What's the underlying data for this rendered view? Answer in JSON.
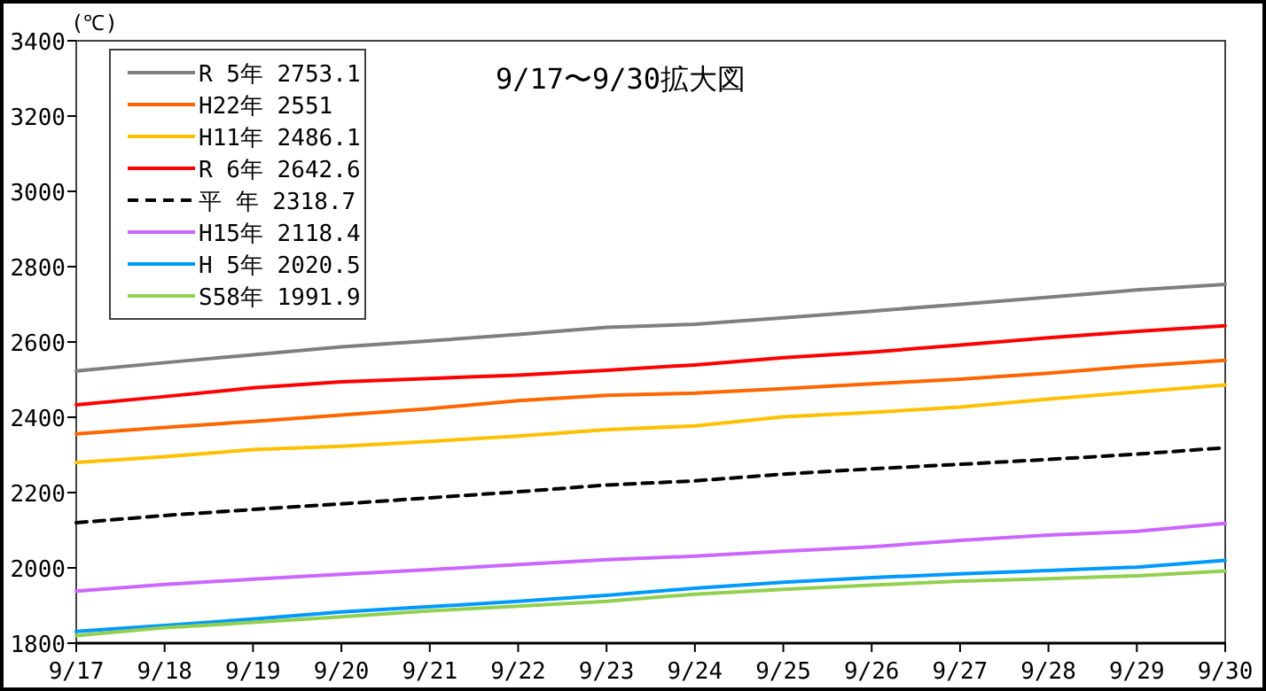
{
  "chart_data": {
    "type": "line",
    "title": "9/17〜9/30拡大図",
    "ylabel": "(℃)",
    "categories": [
      "9/17",
      "9/18",
      "9/19",
      "9/20",
      "9/21",
      "9/22",
      "9/23",
      "9/24",
      "9/25",
      "9/26",
      "9/27",
      "9/28",
      "9/29",
      "9/30"
    ],
    "ylim": [
      1800,
      3400
    ],
    "yticks": [
      1800,
      2000,
      2200,
      2400,
      2600,
      2800,
      3000,
      3200,
      3400
    ],
    "grid": false,
    "legend": "top left",
    "series": [
      {
        "name": "R 5年 2753.1",
        "color": "#7f7f7f",
        "values": [
          2523,
          2545,
          2566,
          2587,
          2603,
          2620,
          2639,
          2647,
          2664,
          2682,
          2700,
          2719,
          2738,
          2753
        ]
      },
      {
        "name": "H22年 2551",
        "color": "#ff6600",
        "values": [
          2356,
          2373,
          2389,
          2406,
          2423,
          2444,
          2458,
          2464,
          2476,
          2489,
          2501,
          2517,
          2536,
          2551
        ]
      },
      {
        "name": "H11年 2486.1",
        "color": "#ffc000",
        "values": [
          2280,
          2295,
          2314,
          2323,
          2336,
          2350,
          2367,
          2377,
          2401,
          2413,
          2427,
          2448,
          2467,
          2486
        ]
      },
      {
        "name": "R 6年 2642.6",
        "color": "#ff0000",
        "values": [
          2433,
          2455,
          2478,
          2494,
          2503,
          2512,
          2525,
          2539,
          2558,
          2573,
          2592,
          2611,
          2628,
          2643
        ]
      },
      {
        "name": "平 年 2318.7",
        "color": "#000000",
        "line_style": "dashed",
        "values": [
          2120,
          2139,
          2155,
          2170,
          2186,
          2202,
          2220,
          2231,
          2249,
          2263,
          2275,
          2288,
          2302,
          2319
        ]
      },
      {
        "name": "H15年 2118.4",
        "color": "#cc66ff",
        "values": [
          1938,
          1956,
          1970,
          1983,
          1995,
          2009,
          2022,
          2031,
          2044,
          2056,
          2073,
          2087,
          2097,
          2118
        ]
      },
      {
        "name": "H 5年 2020.5",
        "color": "#0099ff",
        "values": [
          1831,
          1847,
          1864,
          1883,
          1897,
          1911,
          1927,
          1946,
          1962,
          1974,
          1984,
          1993,
          2002,
          2020
        ]
      },
      {
        "name": "S58年 1991.9",
        "color": "#92d050",
        "values": [
          1820,
          1841,
          1855,
          1870,
          1886,
          1898,
          1911,
          1930,
          1943,
          1954,
          1965,
          1971,
          1979,
          1992
        ]
      }
    ]
  }
}
